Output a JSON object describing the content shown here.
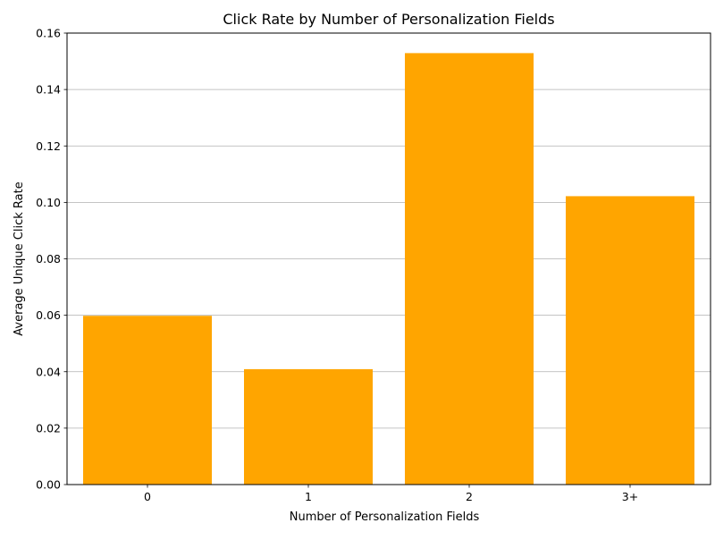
{
  "chart_data": {
    "type": "bar",
    "title": "Click Rate by Number of Personalization Fields",
    "xlabel": "Number of Personalization Fields",
    "ylabel": "Average Unique Click Rate",
    "categories": [
      "0",
      "1",
      "2",
      "3+"
    ],
    "values": [
      0.0598,
      0.0409,
      0.1529,
      0.1022
    ],
    "ylim": [
      0,
      0.16
    ],
    "yticks": [
      "0.00",
      "0.02",
      "0.04",
      "0.06",
      "0.08",
      "0.10",
      "0.12",
      "0.14",
      "0.16"
    ],
    "grid": "y-axis",
    "bar_color": "#ffa500",
    "grid_color": "#b0b0b0"
  }
}
